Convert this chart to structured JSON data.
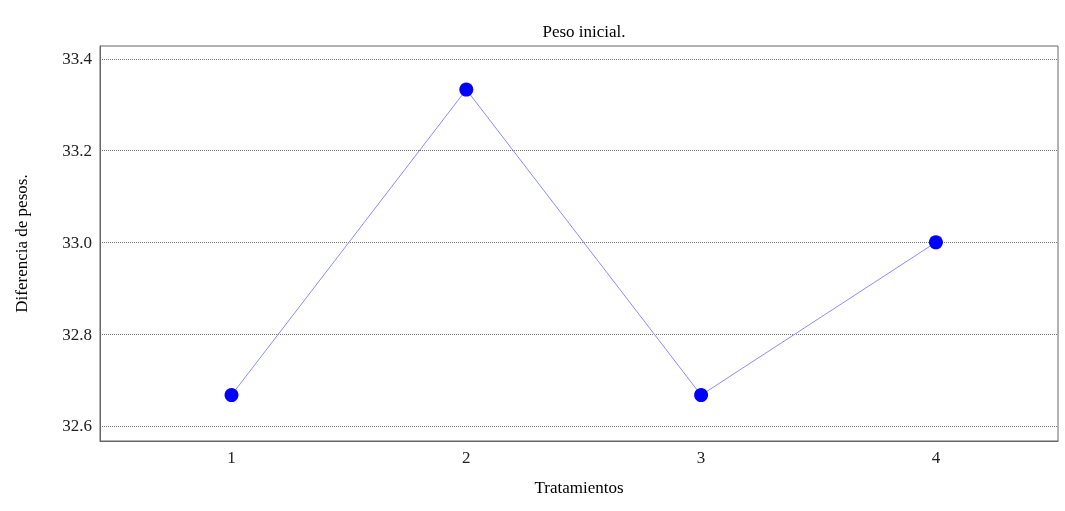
{
  "chart_data": {
    "type": "line",
    "title": "Peso inicial.",
    "xlabel": "Tratamientos",
    "ylabel": "Diferencia de pesos.",
    "x": [
      1,
      2,
      3,
      4
    ],
    "series": [
      {
        "color": "#0000ff",
        "values": [
          32.667,
          33.333,
          32.667,
          33.0
        ]
      }
    ],
    "xlim": [
      0.44,
      4.52
    ],
    "xticks": [
      1,
      2,
      3,
      4
    ],
    "ylim": [
      32.567,
      33.428
    ],
    "yticks": [
      {
        "value": 32.6,
        "label": "32.6"
      },
      {
        "value": 32.8,
        "label": "32.8"
      },
      {
        "value": 33.0,
        "label": "33.0"
      },
      {
        "value": 33.2,
        "label": "33.2"
      },
      {
        "value": 33.4,
        "label": "33.4"
      }
    ],
    "grid": "y",
    "marker": "circle",
    "line_style": "solid"
  }
}
